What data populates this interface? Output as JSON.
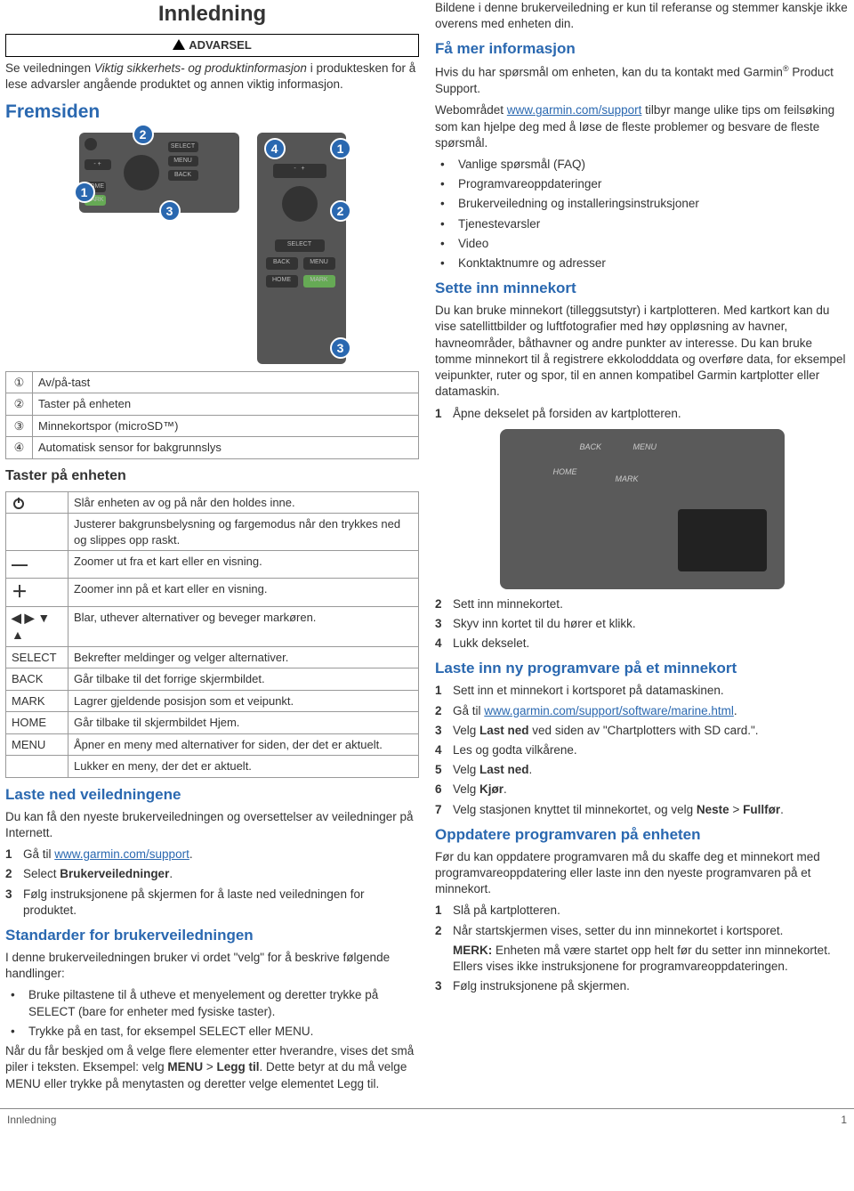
{
  "left": {
    "title": "Innledning",
    "warning_label": "ADVARSEL",
    "intro_p1a": "Se veiledningen ",
    "intro_p1b": "Viktig sikkerhets- og produktinformasjon",
    "intro_p1c": " i produktesken for å lese advarsler angående produktet og annen viktig informasjon.",
    "fremsiden": "Fremsiden",
    "ref_rows": [
      {
        "n": "①",
        "d": "Av/på-tast"
      },
      {
        "n": "②",
        "d": "Taster på enheten"
      },
      {
        "n": "③",
        "d": "Minnekortspor (microSD™)"
      },
      {
        "n": "④",
        "d": "Automatisk sensor for bakgrunnslys"
      }
    ],
    "taster_h": "Taster på enheten",
    "keys": [
      {
        "k": "power",
        "d": "Slår enheten av og på når den holdes inne."
      },
      {
        "k": "",
        "d": "Justerer bakgrunsbelysning og fargemodus når den trykkes ned og slippes opp raskt."
      },
      {
        "k": "minus",
        "d": "Zoomer ut fra et kart eller en visning."
      },
      {
        "k": "plus",
        "d": "Zoomer inn på et kart eller en visning."
      },
      {
        "k": "arrows",
        "d": "Blar, uthever alternativer og beveger markøren."
      },
      {
        "k": "SELECT",
        "d": "Bekrefter meldinger og velger alternativer."
      },
      {
        "k": "BACK",
        "d": "Går tilbake til det forrige skjermbildet."
      },
      {
        "k": "MARK",
        "d": "Lagrer gjeldende posisjon som et veipunkt."
      },
      {
        "k": "HOME",
        "d": "Går tilbake til skjermbildet Hjem."
      },
      {
        "k": "MENU",
        "d": "Åpner en meny med alternativer for siden, der det er aktuelt."
      },
      {
        "k": "",
        "d": "Lukker en meny, der det er aktuelt."
      }
    ],
    "laste_h": "Laste ned veiledningene",
    "laste_p": "Du kan få den nyeste brukerveiledningen og oversettelser av veiledninger på Internett.",
    "laste_steps": [
      {
        "pre": "Gå til ",
        "link": "www.garmin.com/support",
        "post": "."
      },
      {
        "pre": "Select ",
        "bold": "Brukerveiledninger",
        "post": "."
      },
      {
        "pre": "Følg instruksjonene på skjermen for å laste ned veiledningen for produktet."
      }
    ],
    "std_h": "Standarder for brukerveiledningen",
    "std_p1": "I denne brukerveiledningen bruker vi ordet \"velg\" for å beskrive følgende handlinger:",
    "std_bul": [
      "Bruke piltastene til å utheve et menyelement og deretter trykke på SELECT (bare for enheter med fysiske taster).",
      "Trykke på en tast, for eksempel SELECT eller MENU."
    ],
    "std_p2a": "Når du får beskjed om å velge flere elementer etter hverandre, vises det små piler i teksten. Eksempel: velg ",
    "std_p2b": "MENU",
    "std_p2c": " > ",
    "std_p2d": "Legg til",
    "std_p2e": ". Dette betyr at du må velge MENU eller trykke på menytasten og deretter velge elementet Legg til."
  },
  "right": {
    "top_p": "Bildene i denne brukerveiledning er kun til referanse og stemmer kanskje ikke overens med enheten din.",
    "famer_h": "Få mer informasjon",
    "famer_p1a": "Hvis du har spørsmål om enheten, kan du ta kontakt med Garmin",
    "famer_p1b": " Product Support.",
    "famer_p2a": "Webområdet ",
    "famer_link": "www.garmin.com/support",
    "famer_p2b": " tilbyr mange ulike tips om feilsøking som kan hjelpe deg med å løse de fleste problemer og besvare de fleste spørsmål.",
    "famer_bul": [
      "Vanlige spørsmål (FAQ)",
      "Programvareoppdateringer",
      "Brukerveiledning og installeringsinstruksjoner",
      "Tjenestevarsler",
      "Video",
      "Konktaktnumre og adresser"
    ],
    "sette_h": "Sette inn minnekort",
    "sette_p": "Du kan bruke minnekort (tilleggsutstyr) i kartplotteren. Med kartkort kan du vise satellittbilder og luftfotografier med høy oppløsning av havner, havneområder, båthavner og andre punkter av interesse. Du kan bruke tomme minnekort til å registrere ekkolodddata og overføre data, for eksempel veipunkter, ruter og spor, til en annen kompatibel Garmin kartplotter eller datamaskin.",
    "sette_s1": "Åpne dekselet på forsiden av kartplotteren.",
    "sette_steps2": [
      "Sett inn minnekortet.",
      "Skyv inn kortet til du hører et klikk.",
      "Lukk dekselet."
    ],
    "lasteinn_h": "Laste inn ny programvare på et minnekort",
    "lasteinn_steps": [
      "Sett inn et minnekort i kortsporet på datamaskinen.",
      "Gå til |LINK|www.garmin.com/support/software/marine.html|.",
      "Velg |B|Last ned| ved siden av \"Chartplotters with SD card.\".",
      "Les og godta vilkårene.",
      "Velg |B|Last ned|.",
      "Velg |B|Kjør|.",
      "Velg stasjonen knyttet til minnekortet, og velg |B|Neste| > |B|Fullfør|."
    ],
    "opp_h": "Oppdatere programvaren på enheten",
    "opp_p": "Før du kan oppdatere programvaren må du skaffe deg et minnekort med programvareoppdatering eller laste inn den nyeste programvaren på et minnekort.",
    "opp_steps": [
      "Slå på kartplotteren.",
      "Når startskjermen vises, setter du inn minnekortet i kortsporet.",
      "|MERK|MERK:| Enheten må være startet opp helt før du setter inn minnekortet. Ellers vises ikke instruksjonene for programvareoppdateringen.",
      "Følg instruksjonene på skjermen."
    ]
  },
  "footer": {
    "l": "Innledning",
    "r": "1"
  }
}
